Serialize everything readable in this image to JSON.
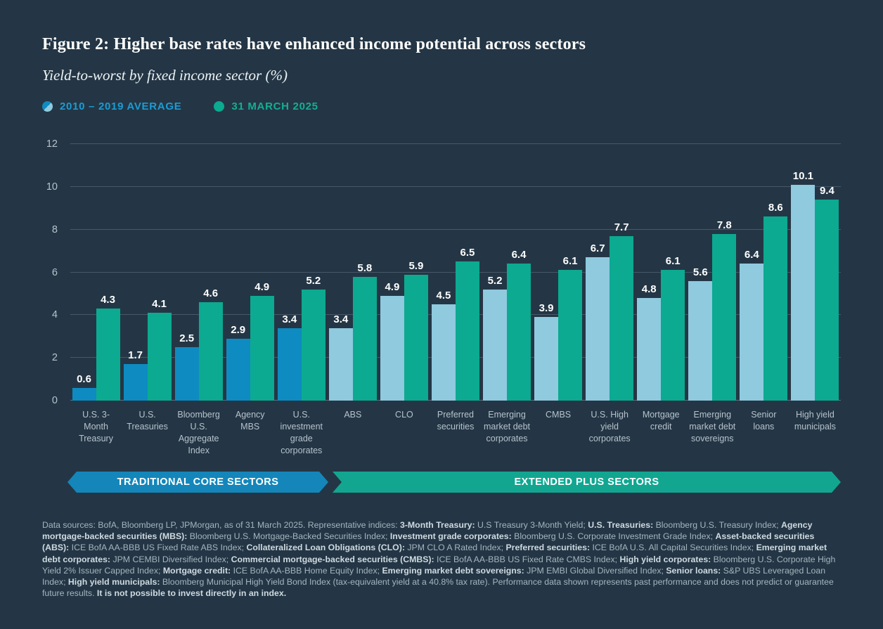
{
  "colors": {
    "background": "#243645",
    "bar_avg_core": "#0e8bc1",
    "bar_avg_plus": "#8fcadf",
    "bar_current": "#0caa90",
    "banner_core": "#1486ba",
    "banner_plus": "#12a691",
    "legend_avg_text": "#1a9cd4",
    "legend_current_text": "#14ae94",
    "grid": "#47586a",
    "axis_text": "#b6c2cc",
    "value_label_text": "#ffffff"
  },
  "chart_data": {
    "type": "bar",
    "title": "Figure 2: Higher base rates have enhanced income potential across sectors",
    "subtitle": "Yield-to-worst by fixed income sector (%)",
    "xlabel": "",
    "ylabel": "",
    "ylim": [
      0,
      12
    ],
    "yticks": [
      0,
      2,
      4,
      6,
      8,
      10,
      12
    ],
    "grid": true,
    "legend_position": "top",
    "categories": [
      "U.S. 3-Month Treasury",
      "U.S. Treasuries",
      "Bloomberg U.S. Aggregate Index",
      "Agency MBS",
      "U.S. investment grade corporates",
      "ABS",
      "CLO",
      "Preferred securities",
      "Emerging market debt corporates",
      "CMBS",
      "U.S. High yield corporates",
      "Mortgage credit",
      "Emerging market debt sovereigns",
      "Senior loans",
      "High yield municipals"
    ],
    "series": [
      {
        "name": "2010 – 2019 AVERAGE",
        "values": [
          0.6,
          1.7,
          2.5,
          2.9,
          3.4,
          3.4,
          4.9,
          4.5,
          5.2,
          3.9,
          6.7,
          4.8,
          5.6,
          6.4,
          10.1
        ]
      },
      {
        "name": "31 MARCH 2025",
        "values": [
          4.3,
          4.1,
          4.6,
          4.9,
          5.2,
          5.8,
          5.9,
          6.5,
          6.4,
          6.1,
          7.7,
          6.1,
          7.8,
          8.6,
          9.4
        ]
      }
    ],
    "traditional_core_sector_count": 5
  },
  "banners": {
    "core": "TRADITIONAL CORE SECTORS",
    "plus": "EXTENDED PLUS SECTORS"
  },
  "footnote": {
    "segments": [
      {
        "t": "Data sources: BofA, Bloomberg LP, JPMorgan, as of 31 March 2025. Representative indices: ",
        "b": false
      },
      {
        "t": "3-Month Treasury:",
        "b": true
      },
      {
        "t": " U.S Treasury 3-Month Yield; ",
        "b": false
      },
      {
        "t": "U.S. Treasuries:",
        "b": true
      },
      {
        "t": " Bloomberg U.S. Treasury Index; ",
        "b": false
      },
      {
        "t": "Agency mortgage-backed securities (MBS):",
        "b": true
      },
      {
        "t": " Bloomberg U.S. Mortgage-Backed Securities Index; ",
        "b": false
      },
      {
        "t": "Investment grade corporates:",
        "b": true
      },
      {
        "t": " Bloomberg U.S. Corporate Investment Grade Index; ",
        "b": false
      },
      {
        "t": "Asset-backed securities (ABS):",
        "b": true
      },
      {
        "t": " ICE BofA AA-BBB US Fixed Rate ABS Index; ",
        "b": false
      },
      {
        "t": "Collateralized Loan Obligations (CLO):",
        "b": true
      },
      {
        "t": " JPM CLO A Rated Index; ",
        "b": false
      },
      {
        "t": "Preferred securities:",
        "b": true
      },
      {
        "t": " ICE BofA U.S. All Capital Securities Index; ",
        "b": false
      },
      {
        "t": "Emerging market debt corporates:",
        "b": true
      },
      {
        "t": " JPM CEMBI Diversified Index; ",
        "b": false
      },
      {
        "t": "Commercial mortgage-backed securities (CMBS):",
        "b": true
      },
      {
        "t": " ICE BofA AA-BBB US Fixed Rate CMBS Index; ",
        "b": false
      },
      {
        "t": "High yield corporates:",
        "b": true
      },
      {
        "t": " Bloomberg U.S. Corporate High Yield 2% Issuer Capped Index; ",
        "b": false
      },
      {
        "t": "Mortgage credit:",
        "b": true
      },
      {
        "t": " ICE BofA AA-BBB Home Equity Index; ",
        "b": false
      },
      {
        "t": "Emerging market debt sovereigns:",
        "b": true
      },
      {
        "t": " JPM EMBI Global Diversified Index; ",
        "b": false
      },
      {
        "t": "Senior loans:",
        "b": true
      },
      {
        "t": " S&P UBS Leveraged Loan Index; ",
        "b": false
      },
      {
        "t": "High yield municipals:",
        "b": true
      },
      {
        "t": " Bloomberg Municipal High Yield Bond Index (tax-equivalent yield at a 40.8% tax rate). Performance data shown represents past performance and does not predict or guarantee future results. ",
        "b": false
      },
      {
        "t": "It is not possible to invest directly in an index.",
        "b": true
      }
    ]
  }
}
